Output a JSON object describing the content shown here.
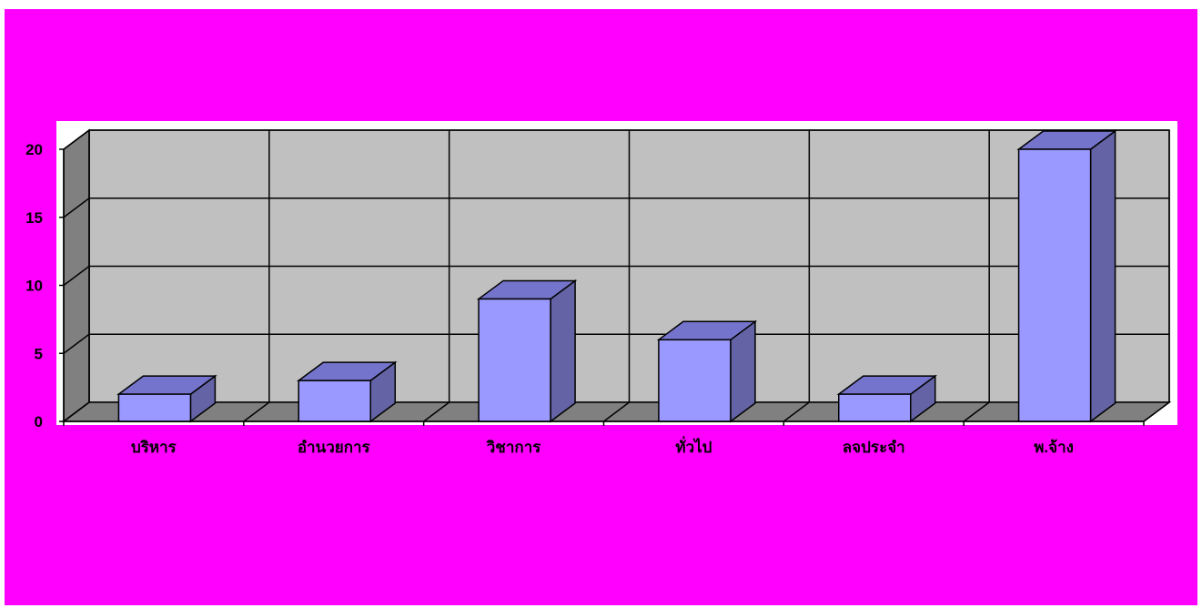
{
  "chart_data": {
    "type": "bar",
    "style": "3d-column",
    "categories": [
      "บริหาร",
      "อำนวยการ",
      "วิชาการ",
      "ทั่วไป",
      "ลจประจำ",
      "พ.จ้าง"
    ],
    "values": [
      2,
      3,
      9,
      6,
      2,
      20
    ],
    "title": "",
    "xlabel": "",
    "ylabel": "",
    "ylim": [
      0,
      20
    ],
    "yticks": [
      0,
      5,
      10,
      15,
      20
    ],
    "grid": true,
    "legend": "none",
    "colors": {
      "slide_background": "#ff00ff",
      "plot_background": "#ffffff",
      "wall": "#c0c0c0",
      "side_wall": "#808080",
      "floor": "#808080",
      "bar_front": "#9999ff",
      "bar_top": "#7474cc",
      "bar_side": "#6363a6"
    }
  }
}
